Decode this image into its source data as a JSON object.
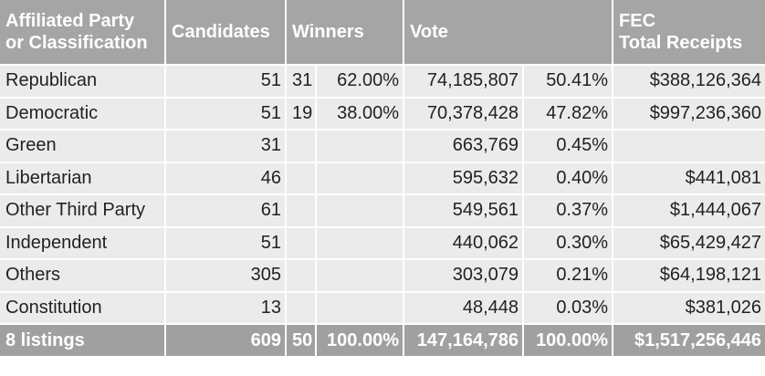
{
  "table": {
    "header": [
      [
        "Affiliated Party",
        "or Classification"
      ],
      [
        "Candidates"
      ],
      [
        "Winners"
      ],
      [
        "Vote"
      ],
      [
        "FEC",
        "Total Receipts"
      ]
    ],
    "rows": [
      [
        "Republican",
        "51",
        "31",
        "62.00%",
        "74,185,807",
        "50.41%",
        "$388,126,364"
      ],
      [
        "Democratic",
        "51",
        "19",
        "38.00%",
        "70,378,428",
        "47.82%",
        "$997,236,360"
      ],
      [
        "Green",
        "31",
        null,
        null,
        "663,769",
        "0.45%",
        null
      ],
      [
        "Libertarian",
        "46",
        null,
        null,
        "595,632",
        "0.40%",
        "$441,081"
      ],
      [
        "Other Third Party",
        "61",
        null,
        null,
        "549,561",
        "0.37%",
        "$1,444,067"
      ],
      [
        "Independent",
        "51",
        null,
        null,
        "440,062",
        "0.30%",
        "$65,429,427"
      ],
      [
        "Others",
        "305",
        null,
        null,
        "303,079",
        "0.21%",
        "$64,198,121"
      ],
      [
        "Constitution",
        "13",
        null,
        null,
        "48,448",
        "0.03%",
        "$381,026"
      ]
    ],
    "footer": [
      "8 listings",
      "609",
      "50",
      "100.00%",
      "147,164,786",
      "100.00%",
      "$1,517,256,446"
    ]
  }
}
